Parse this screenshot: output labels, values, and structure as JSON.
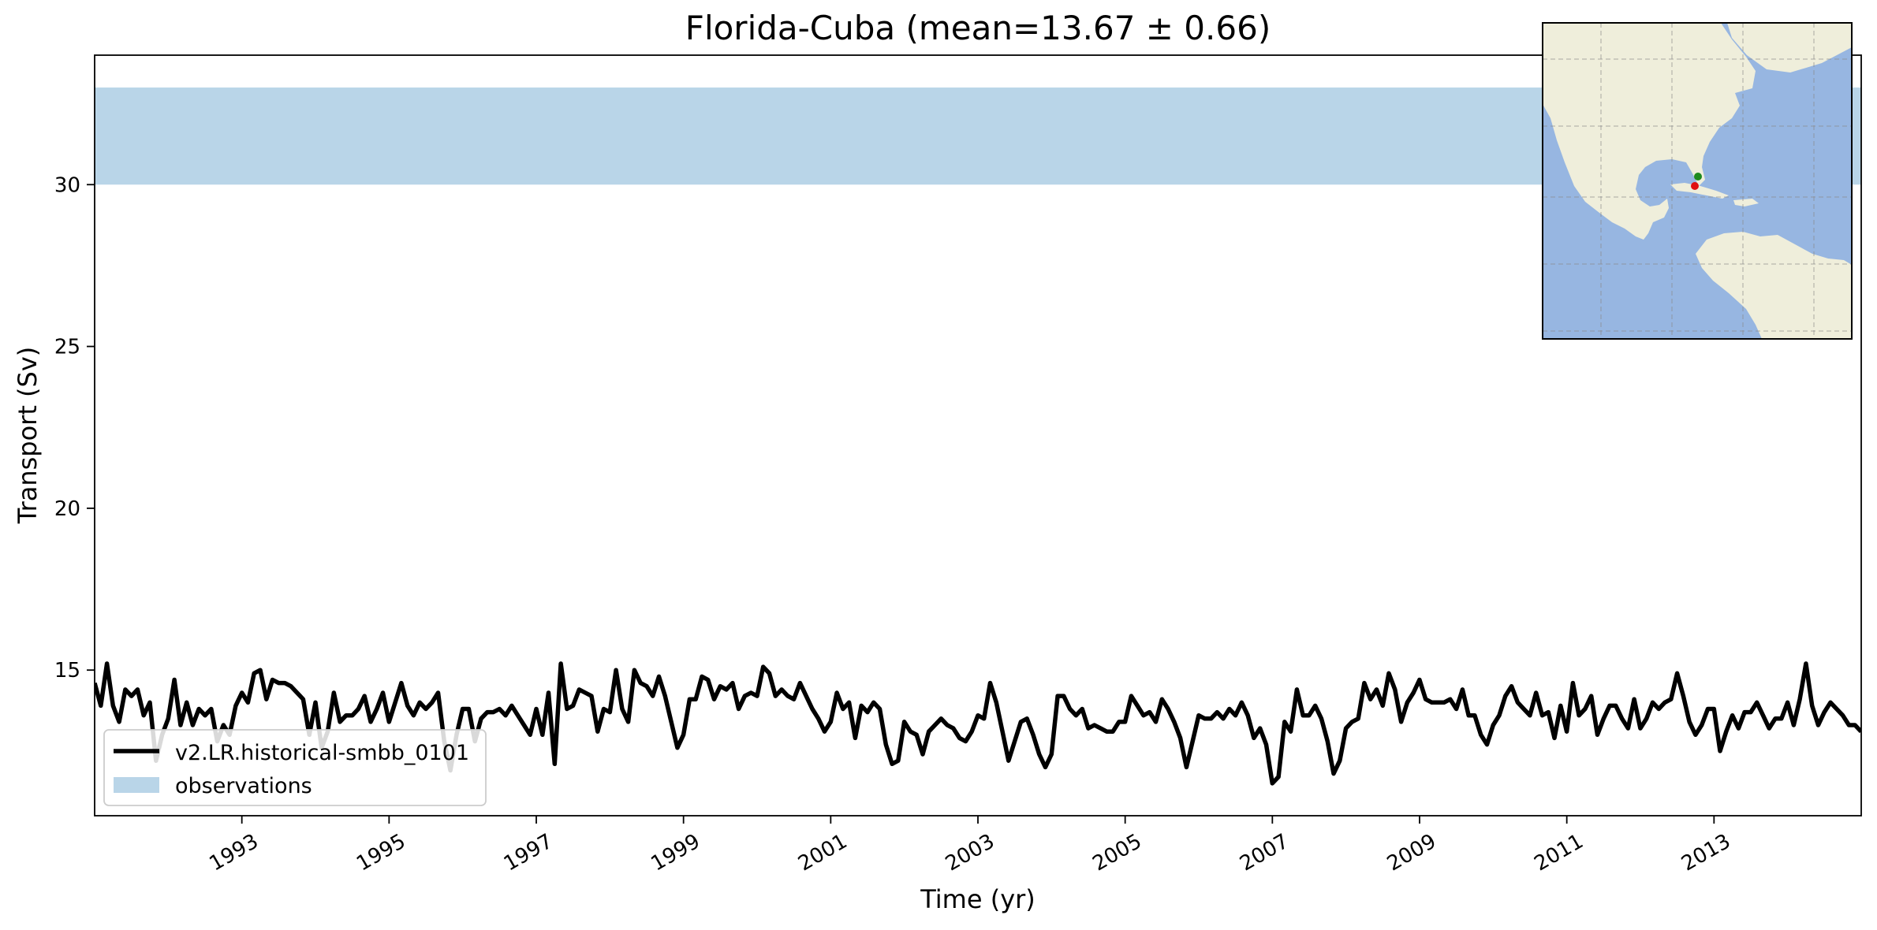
{
  "chart_data": {
    "type": "line",
    "title": "Florida-Cuba (mean=13.67 ± 0.66)",
    "xlabel": "Time (yr)",
    "ylabel": "Transport (Sv)",
    "xlim": [
      1991.0,
      2015.0
    ],
    "ylim": [
      10.5,
      34.0
    ],
    "x_ticks": [
      "1993",
      "1995",
      "1997",
      "1999",
      "2001",
      "2003",
      "2005",
      "2007",
      "2009",
      "2011",
      "2013"
    ],
    "y_ticks": [
      "15",
      "20",
      "25",
      "30"
    ],
    "grid": false,
    "legend": {
      "placement": "lower-left"
    },
    "observations": {
      "name": "observations",
      "y_min": 30.0,
      "y_max": 33.0,
      "color": "#b9d5e8"
    },
    "series": [
      {
        "name": "v2.LR.historical-smbb_0101",
        "color": "#000000",
        "x_start": 1991.0,
        "x_step": 0.08333,
        "values": [
          14.6,
          13.9,
          15.2,
          13.9,
          13.4,
          14.4,
          14.2,
          14.4,
          13.6,
          14.0,
          12.2,
          13.0,
          13.5,
          14.7,
          13.3,
          14.0,
          13.3,
          13.8,
          13.6,
          13.8,
          12.8,
          13.3,
          13.0,
          13.9,
          14.3,
          14.0,
          14.9,
          15.0,
          14.1,
          14.7,
          14.6,
          14.6,
          14.5,
          14.3,
          14.1,
          13.0,
          14.0,
          12.6,
          13.1,
          14.3,
          13.4,
          13.6,
          13.6,
          13.8,
          14.2,
          13.4,
          13.8,
          14.3,
          13.4,
          14.0,
          14.6,
          13.9,
          13.6,
          14.0,
          13.8,
          14.0,
          14.3,
          12.8,
          11.9,
          13.0,
          13.8,
          13.8,
          12.8,
          13.5,
          13.7,
          13.7,
          13.8,
          13.6,
          13.9,
          13.6,
          13.3,
          13.0,
          13.8,
          13.0,
          14.3,
          12.1,
          15.2,
          13.8,
          13.9,
          14.4,
          14.3,
          14.2,
          13.1,
          13.8,
          13.7,
          15.0,
          13.8,
          13.4,
          15.0,
          14.6,
          14.5,
          14.2,
          14.8,
          14.2,
          13.4,
          12.6,
          13.0,
          14.1,
          14.1,
          14.8,
          14.7,
          14.1,
          14.5,
          14.4,
          14.6,
          13.8,
          14.2,
          14.3,
          14.2,
          15.1,
          14.9,
          14.2,
          14.4,
          14.2,
          14.1,
          14.6,
          14.2,
          13.8,
          13.5,
          13.1,
          13.4,
          14.3,
          13.8,
          14.0,
          12.9,
          13.9,
          13.7,
          14.0,
          13.8,
          12.7,
          12.1,
          12.2,
          13.4,
          13.1,
          13.0,
          12.4,
          13.1,
          13.3,
          13.5,
          13.3,
          13.2,
          12.9,
          12.8,
          13.1,
          13.6,
          13.5,
          14.6,
          14.0,
          13.1,
          12.2,
          12.8,
          13.4,
          13.5,
          13.0,
          12.4,
          12.0,
          12.4,
          14.2,
          14.2,
          13.8,
          13.6,
          13.8,
          13.2,
          13.3,
          13.2,
          13.1,
          13.1,
          13.4,
          13.4,
          14.2,
          13.9,
          13.6,
          13.7,
          13.4,
          14.1,
          13.8,
          13.4,
          12.9,
          12.0,
          12.8,
          13.6,
          13.5,
          13.5,
          13.7,
          13.5,
          13.8,
          13.6,
          14.0,
          13.6,
          12.9,
          13.2,
          12.7,
          11.5,
          11.7,
          13.4,
          13.1,
          14.4,
          13.6,
          13.6,
          13.9,
          13.5,
          12.8,
          11.8,
          12.2,
          13.2,
          13.4,
          13.5,
          14.6,
          14.1,
          14.4,
          13.9,
          14.9,
          14.4,
          13.4,
          14.0,
          14.3,
          14.7,
          14.1,
          14.0,
          14.0,
          14.0,
          14.1,
          13.8,
          14.4,
          13.6,
          13.6,
          13.0,
          12.7,
          13.3,
          13.6,
          14.2,
          14.5,
          14.0,
          13.8,
          13.6,
          14.3,
          13.6,
          13.7,
          12.9,
          13.9,
          13.1,
          14.6,
          13.6,
          13.8,
          14.2,
          13.0,
          13.5,
          13.9,
          13.9,
          13.5,
          13.2,
          14.1,
          13.2,
          13.5,
          14.0,
          13.8,
          14.0,
          14.1,
          14.9,
          14.2,
          13.4,
          13.0,
          13.3,
          13.8,
          13.8,
          12.5,
          13.1,
          13.6,
          13.2,
          13.7,
          13.7,
          14.0,
          13.6,
          13.2,
          13.5,
          13.5,
          14.0,
          13.3,
          14.1,
          15.2,
          13.9,
          13.3,
          13.7,
          14.0,
          13.8,
          13.6,
          13.3,
          13.3,
          13.1
        ]
      }
    ],
    "inset_map": {
      "land_color": "#efeedb",
      "ocean_color": "#97b6e1",
      "markers": [
        {
          "label": "green",
          "color": "#1e8a1e"
        },
        {
          "label": "red",
          "color": "#e01010"
        }
      ]
    }
  }
}
